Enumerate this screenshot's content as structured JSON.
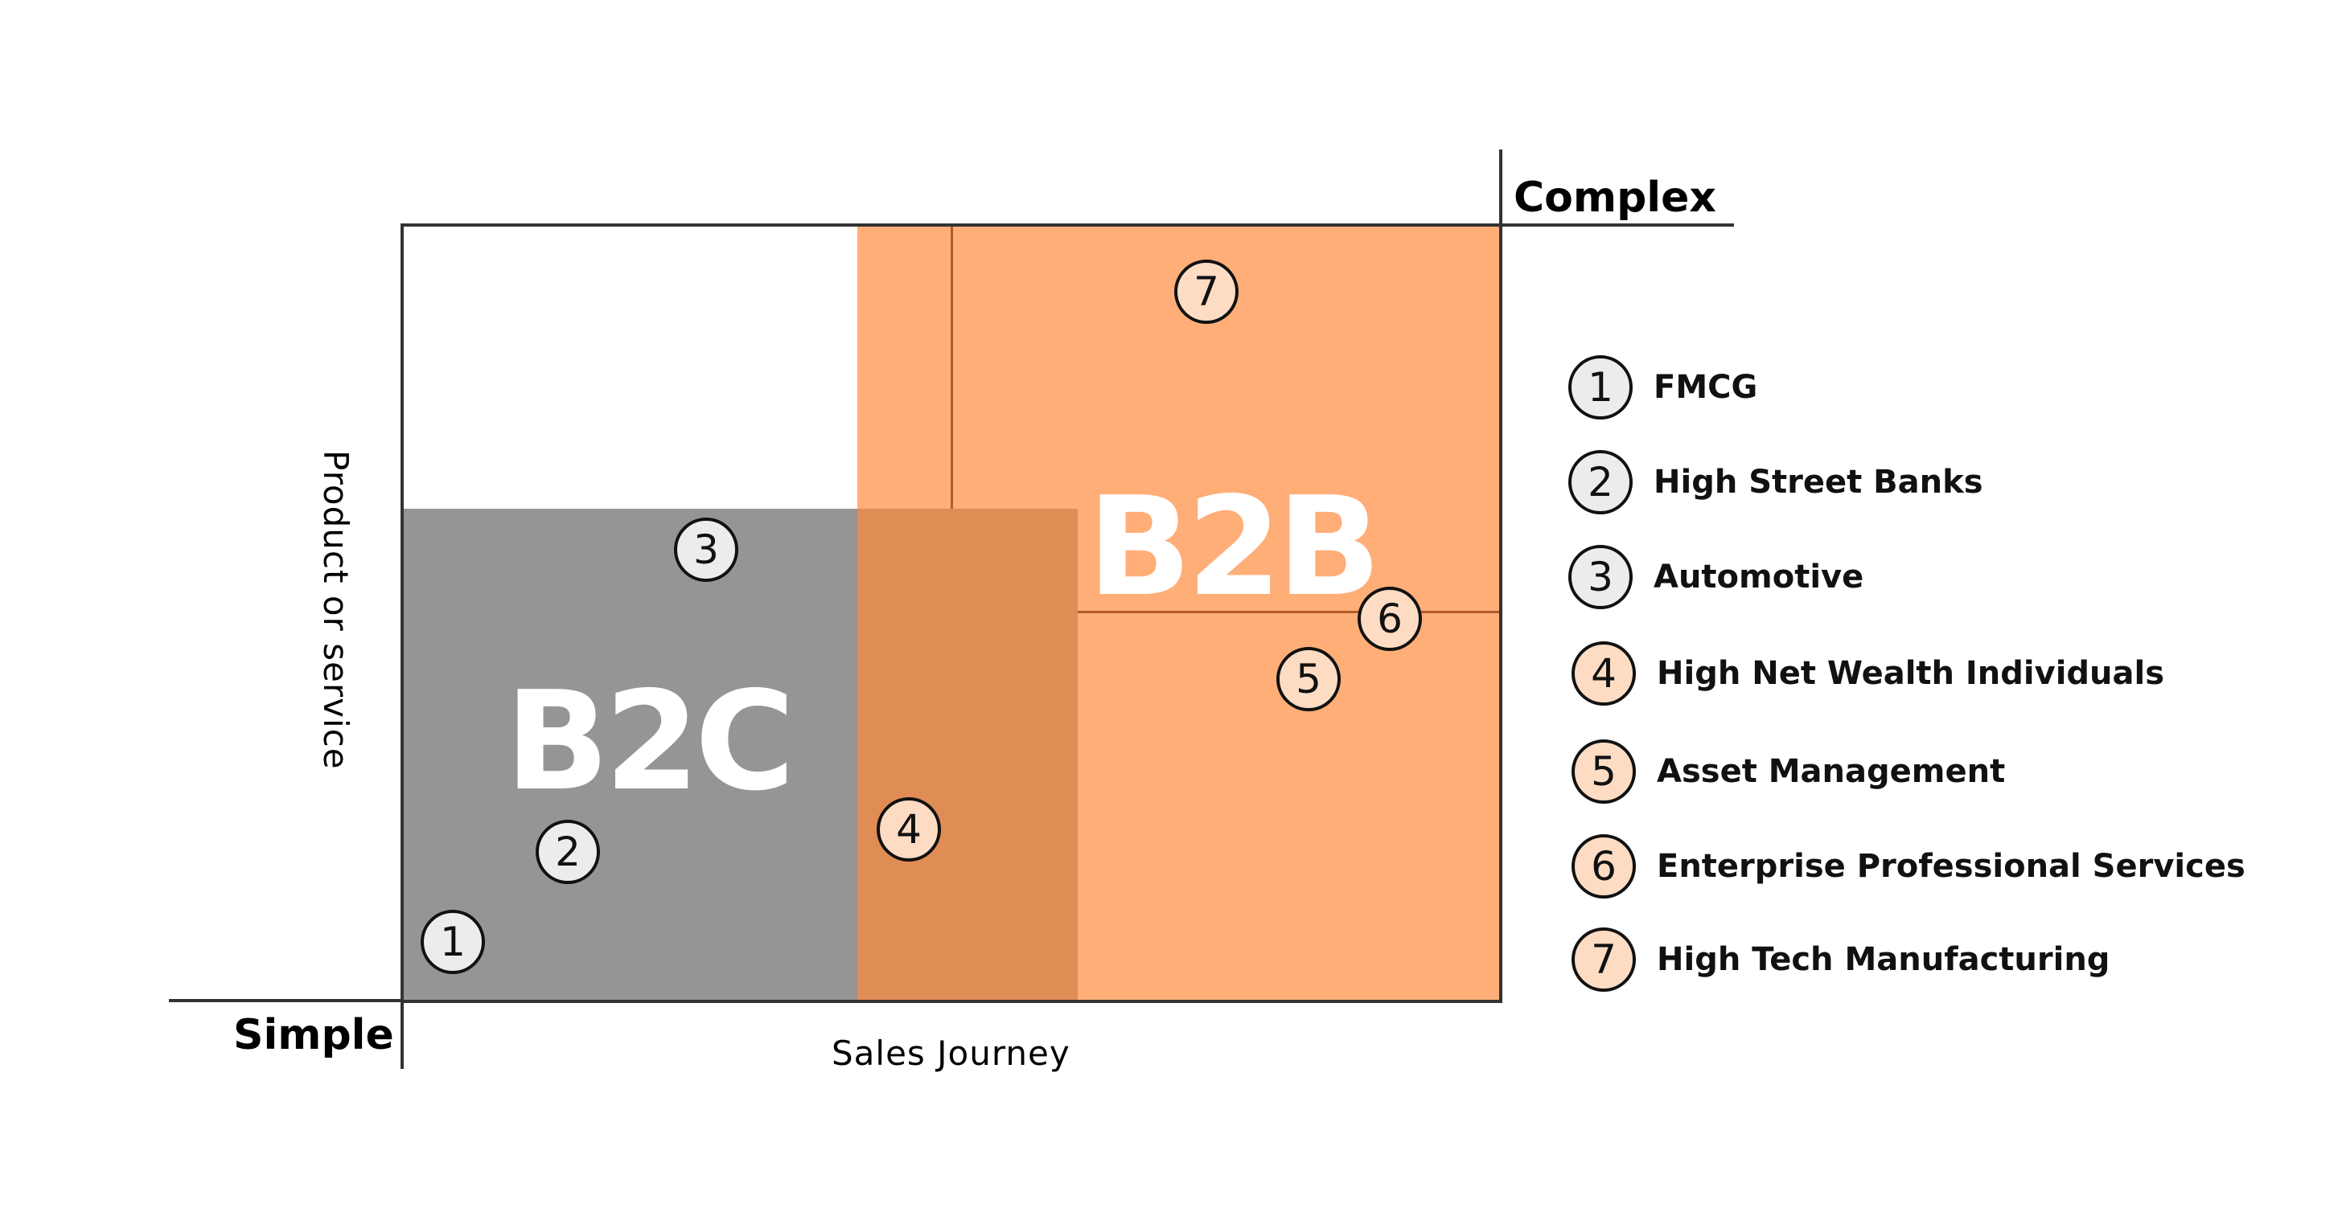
{
  "colors": {
    "gray_zone": "#959595",
    "orange_light": "#ffae78",
    "orange_dark": "#e08c55",
    "orange_line": "#b45a2a",
    "axis_line": "#333333",
    "marker_gray_fill": "#ececec",
    "marker_orange_fill": "#fedcc4"
  },
  "zones": {
    "b2c_label": "B2C",
    "b2b_label": "B2B"
  },
  "axes": {
    "top_right_label": "Complex",
    "bottom_left_label": "Simple",
    "x_title": "Sales Journey",
    "y_title": "Product or service"
  },
  "markers": [
    {
      "number": "1",
      "fill": "gray"
    },
    {
      "number": "2",
      "fill": "gray"
    },
    {
      "number": "3",
      "fill": "gray"
    },
    {
      "number": "4",
      "fill": "orange"
    },
    {
      "number": "5",
      "fill": "orange"
    },
    {
      "number": "6",
      "fill": "orange"
    },
    {
      "number": "7",
      "fill": "orange"
    }
  ],
  "legend": [
    {
      "number": "1",
      "label": "FMCG",
      "fill": "gray"
    },
    {
      "number": "2",
      "label": "High Street Banks",
      "fill": "gray"
    },
    {
      "number": "3",
      "label": "Automotive",
      "fill": "gray"
    },
    {
      "number": "4",
      "label": "High Net Wealth Individuals",
      "fill": "orange"
    },
    {
      "number": "5",
      "label": "Asset Management",
      "fill": "orange"
    },
    {
      "number": "6",
      "label": "Enterprise Professional Services",
      "fill": "orange"
    },
    {
      "number": "7",
      "label": "High Tech Manufacturing",
      "fill": "orange"
    }
  ]
}
